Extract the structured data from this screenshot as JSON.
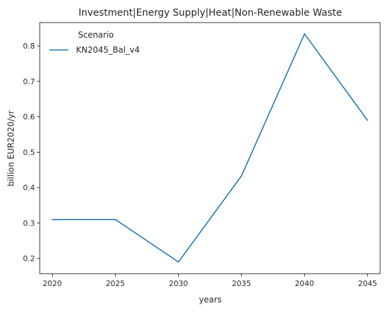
{
  "chart_data": {
    "type": "line",
    "title": "Investment|Energy Supply|Heat|Non-Renewable Waste",
    "xlabel": "years",
    "ylabel": "billion EUR2020/yr",
    "x": [
      2020,
      2025,
      2030,
      2035,
      2040,
      2045
    ],
    "xlim": [
      2019,
      2046
    ],
    "ylim": [
      0.157,
      0.866
    ],
    "xticks": [
      "2020",
      "2025",
      "2030",
      "2035",
      "2040",
      "2045"
    ],
    "yticks": [
      "0.2",
      "0.3",
      "0.4",
      "0.5",
      "0.6",
      "0.7",
      "0.8"
    ],
    "legend": {
      "title": "Scenario",
      "placement": "top-left"
    },
    "series": [
      {
        "name": "KN2045_Bal_v4",
        "color": "#1f77b4",
        "values": [
          0.31,
          0.31,
          0.19,
          0.433,
          0.834,
          0.59
        ]
      }
    ],
    "grid": false
  }
}
